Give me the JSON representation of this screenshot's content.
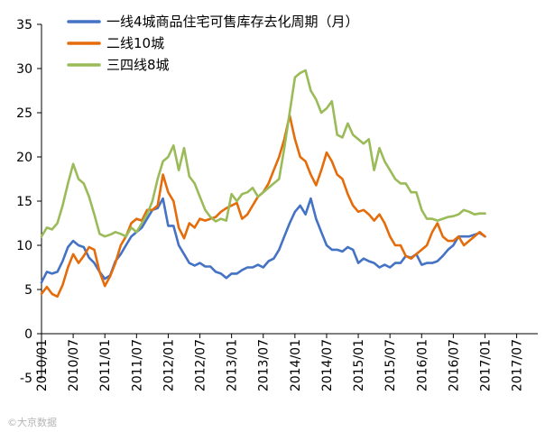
{
  "chart_data": {
    "type": "line",
    "title": "",
    "xlabel": "",
    "ylabel": "",
    "ylim": [
      -5,
      35
    ],
    "yticks": [
      -5,
      0,
      5,
      10,
      15,
      20,
      25,
      30,
      35
    ],
    "x_start": "2010/01",
    "x_end": "2017/11",
    "x_tick_labels": [
      "2010/01",
      "2010/07",
      "2011/01",
      "2011/07",
      "2012/01",
      "2012/07",
      "2013/01",
      "2013/07",
      "2014/01",
      "2014/07",
      "2015/01",
      "2015/07",
      "2016/01",
      "2016/07",
      "2017/01",
      "2017/07"
    ],
    "grid": false,
    "legend_position": "top",
    "series": [
      {
        "name": "一线4城商品住宅可售库存去化周期（月）",
        "color": "#4472c4",
        "values": [
          5.8,
          7.0,
          6.8,
          7.0,
          8.2,
          9.8,
          10.5,
          10.0,
          9.8,
          8.6,
          8.0,
          7.0,
          6.2,
          6.6,
          8.2,
          9.0,
          10.0,
          11.0,
          11.5,
          12.0,
          13.0,
          14.0,
          14.2,
          15.3,
          12.2,
          12.2,
          10.0,
          9.0,
          8.0,
          7.7,
          8.0,
          7.6,
          7.6,
          7.0,
          6.8,
          6.3,
          6.8,
          6.8,
          7.2,
          7.5,
          7.5,
          7.8,
          7.5,
          8.2,
          8.5,
          9.5,
          11.0,
          12.5,
          13.8,
          14.5,
          13.5,
          15.3,
          13.0,
          11.5,
          10.0,
          9.5,
          9.5,
          9.3,
          9.8,
          9.5,
          8.0,
          8.5,
          8.2,
          8.0,
          7.5,
          7.8,
          7.5,
          8.0,
          8.0,
          8.8,
          8.6,
          9.0,
          7.8,
          8.0,
          8.0,
          8.2,
          8.8,
          9.5,
          10.0,
          11.0,
          11.0,
          11.0,
          11.2,
          11.4,
          11.0
        ]
      },
      {
        "name": "二线10城",
        "color": "#e46c0a",
        "values": [
          4.5,
          5.3,
          4.5,
          4.2,
          5.5,
          7.5,
          9.0,
          8.0,
          8.8,
          9.8,
          9.5,
          7.0,
          5.4,
          6.5,
          8.0,
          10.0,
          11.0,
          12.5,
          13.0,
          12.8,
          14.0,
          14.0,
          14.5,
          18.0,
          16.0,
          15.0,
          12.0,
          10.8,
          12.5,
          12.0,
          13.0,
          12.8,
          13.0,
          13.2,
          13.8,
          14.2,
          14.5,
          14.8,
          13.0,
          13.5,
          14.5,
          15.5,
          16.0,
          17.0,
          18.5,
          20.0,
          22.0,
          24.7,
          22.0,
          20.0,
          19.5,
          18.0,
          16.8,
          18.5,
          20.5,
          19.5,
          18.0,
          17.5,
          15.8,
          14.5,
          13.8,
          14.0,
          13.5,
          12.8,
          13.5,
          12.5,
          11.0,
          10.0,
          10.0,
          8.8,
          8.5,
          9.0,
          9.5,
          10.0,
          11.5,
          12.5,
          11.0,
          10.5,
          10.5,
          11.0,
          10.0,
          10.5,
          11.0,
          11.5,
          11.0
        ]
      },
      {
        "name": "三四线8城",
        "color": "#9bbb59",
        "values": [
          11.0,
          12.0,
          11.8,
          12.5,
          14.5,
          17.0,
          19.2,
          17.5,
          17.0,
          15.5,
          13.5,
          11.3,
          11.0,
          11.2,
          11.5,
          11.3,
          11.0,
          12.0,
          11.5,
          12.5,
          13.5,
          15.0,
          17.5,
          19.5,
          20.0,
          21.3,
          18.5,
          21.0,
          17.8,
          17.0,
          15.5,
          14.0,
          13.2,
          12.7,
          13.0,
          12.8,
          15.8,
          15.0,
          15.8,
          16.0,
          16.5,
          15.5,
          16.0,
          16.5,
          17.0,
          17.5,
          21.0,
          25.0,
          29.0,
          29.5,
          29.8,
          27.5,
          26.5,
          25.0,
          25.5,
          26.3,
          22.5,
          22.2,
          23.8,
          22.5,
          22.0,
          21.5,
          22.0,
          18.5,
          21.0,
          19.5,
          18.5,
          17.5,
          17.0,
          17.0,
          16.0,
          16.0,
          14.0,
          13.0,
          13.0,
          12.8,
          13.0,
          13.2,
          13.3,
          13.5,
          14.0,
          13.8,
          13.5,
          13.6,
          13.6
        ]
      }
    ]
  },
  "watermark": "©大京数据"
}
